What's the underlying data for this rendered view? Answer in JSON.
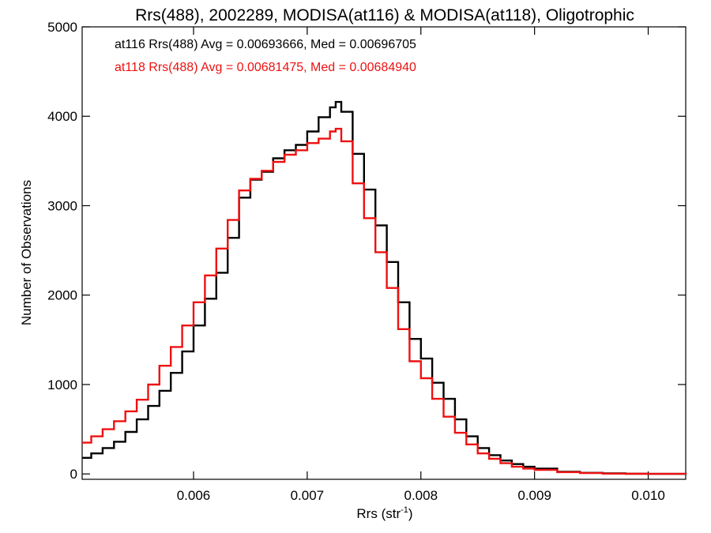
{
  "chart_data": {
    "type": "line",
    "title": "Rrs(488), 2002289, MODISA(at116) & MODISA(at118), Oligotrophic",
    "xlabel": "Rrs (str",
    "xlabel_sup": "-1",
    "xlabel_close": ")",
    "ylabel": "Number of Observations",
    "xlim": [
      0.00502,
      0.01033
    ],
    "ylim": [
      -60,
      5000
    ],
    "xticks": [
      0.006,
      0.007,
      0.008,
      0.009,
      0.01
    ],
    "xtick_labels": [
      "0.006",
      "0.007",
      "0.008",
      "0.009",
      "0.010"
    ],
    "yticks": [
      0,
      1000,
      2000,
      3000,
      4000,
      5000
    ],
    "ytick_labels": [
      "0",
      "1000",
      "2000",
      "3000",
      "4000",
      "5000"
    ],
    "grid": false,
    "step": true,
    "annotations": [
      {
        "text": "at116 Rrs(488) Avg = 0.00693666, Med = 0.00696705",
        "color": "#000000"
      },
      {
        "text": "at118 Rrs(488) Avg = 0.00681475, Med = 0.00684940",
        "color": "#ee1111"
      }
    ],
    "x": [
      0.00502,
      0.0051,
      0.0052,
      0.0053,
      0.0054,
      0.0055,
      0.0056,
      0.0057,
      0.0058,
      0.0059,
      0.006,
      0.0061,
      0.0062,
      0.0063,
      0.0064,
      0.0065,
      0.0066,
      0.0067,
      0.0068,
      0.0069,
      0.007,
      0.0071,
      0.0072,
      0.00725,
      0.0073,
      0.0074,
      0.0075,
      0.0076,
      0.0077,
      0.0078,
      0.0079,
      0.008,
      0.0081,
      0.0082,
      0.0083,
      0.0084,
      0.0085,
      0.0086,
      0.0087,
      0.0088,
      0.0089,
      0.009,
      0.0092,
      0.0094,
      0.0096,
      0.0098,
      0.01,
      0.01033
    ],
    "series": [
      {
        "color": "#000000",
        "values": [
          180,
          230,
          290,
          360,
          470,
          610,
          760,
          930,
          1130,
          1370,
          1660,
          1960,
          2250,
          2640,
          3090,
          3290,
          3380,
          3530,
          3620,
          3680,
          3830,
          3990,
          4100,
          4160,
          4050,
          3580,
          3180,
          2780,
          2370,
          1920,
          1510,
          1290,
          1020,
          840,
          610,
          420,
          290,
          210,
          150,
          110,
          80,
          60,
          25,
          12,
          6,
          3,
          1,
          0
        ]
      },
      {
        "color": "#ee1111",
        "values": [
          350,
          420,
          500,
          590,
          700,
          830,
          1000,
          1210,
          1420,
          1660,
          1920,
          2220,
          2520,
          2840,
          3170,
          3300,
          3390,
          3490,
          3570,
          3620,
          3700,
          3750,
          3830,
          3860,
          3720,
          3250,
          2860,
          2480,
          2080,
          1620,
          1260,
          1070,
          840,
          640,
          460,
          330,
          230,
          170,
          120,
          80,
          60,
          45,
          20,
          10,
          4,
          2,
          1,
          0
        ]
      }
    ]
  }
}
